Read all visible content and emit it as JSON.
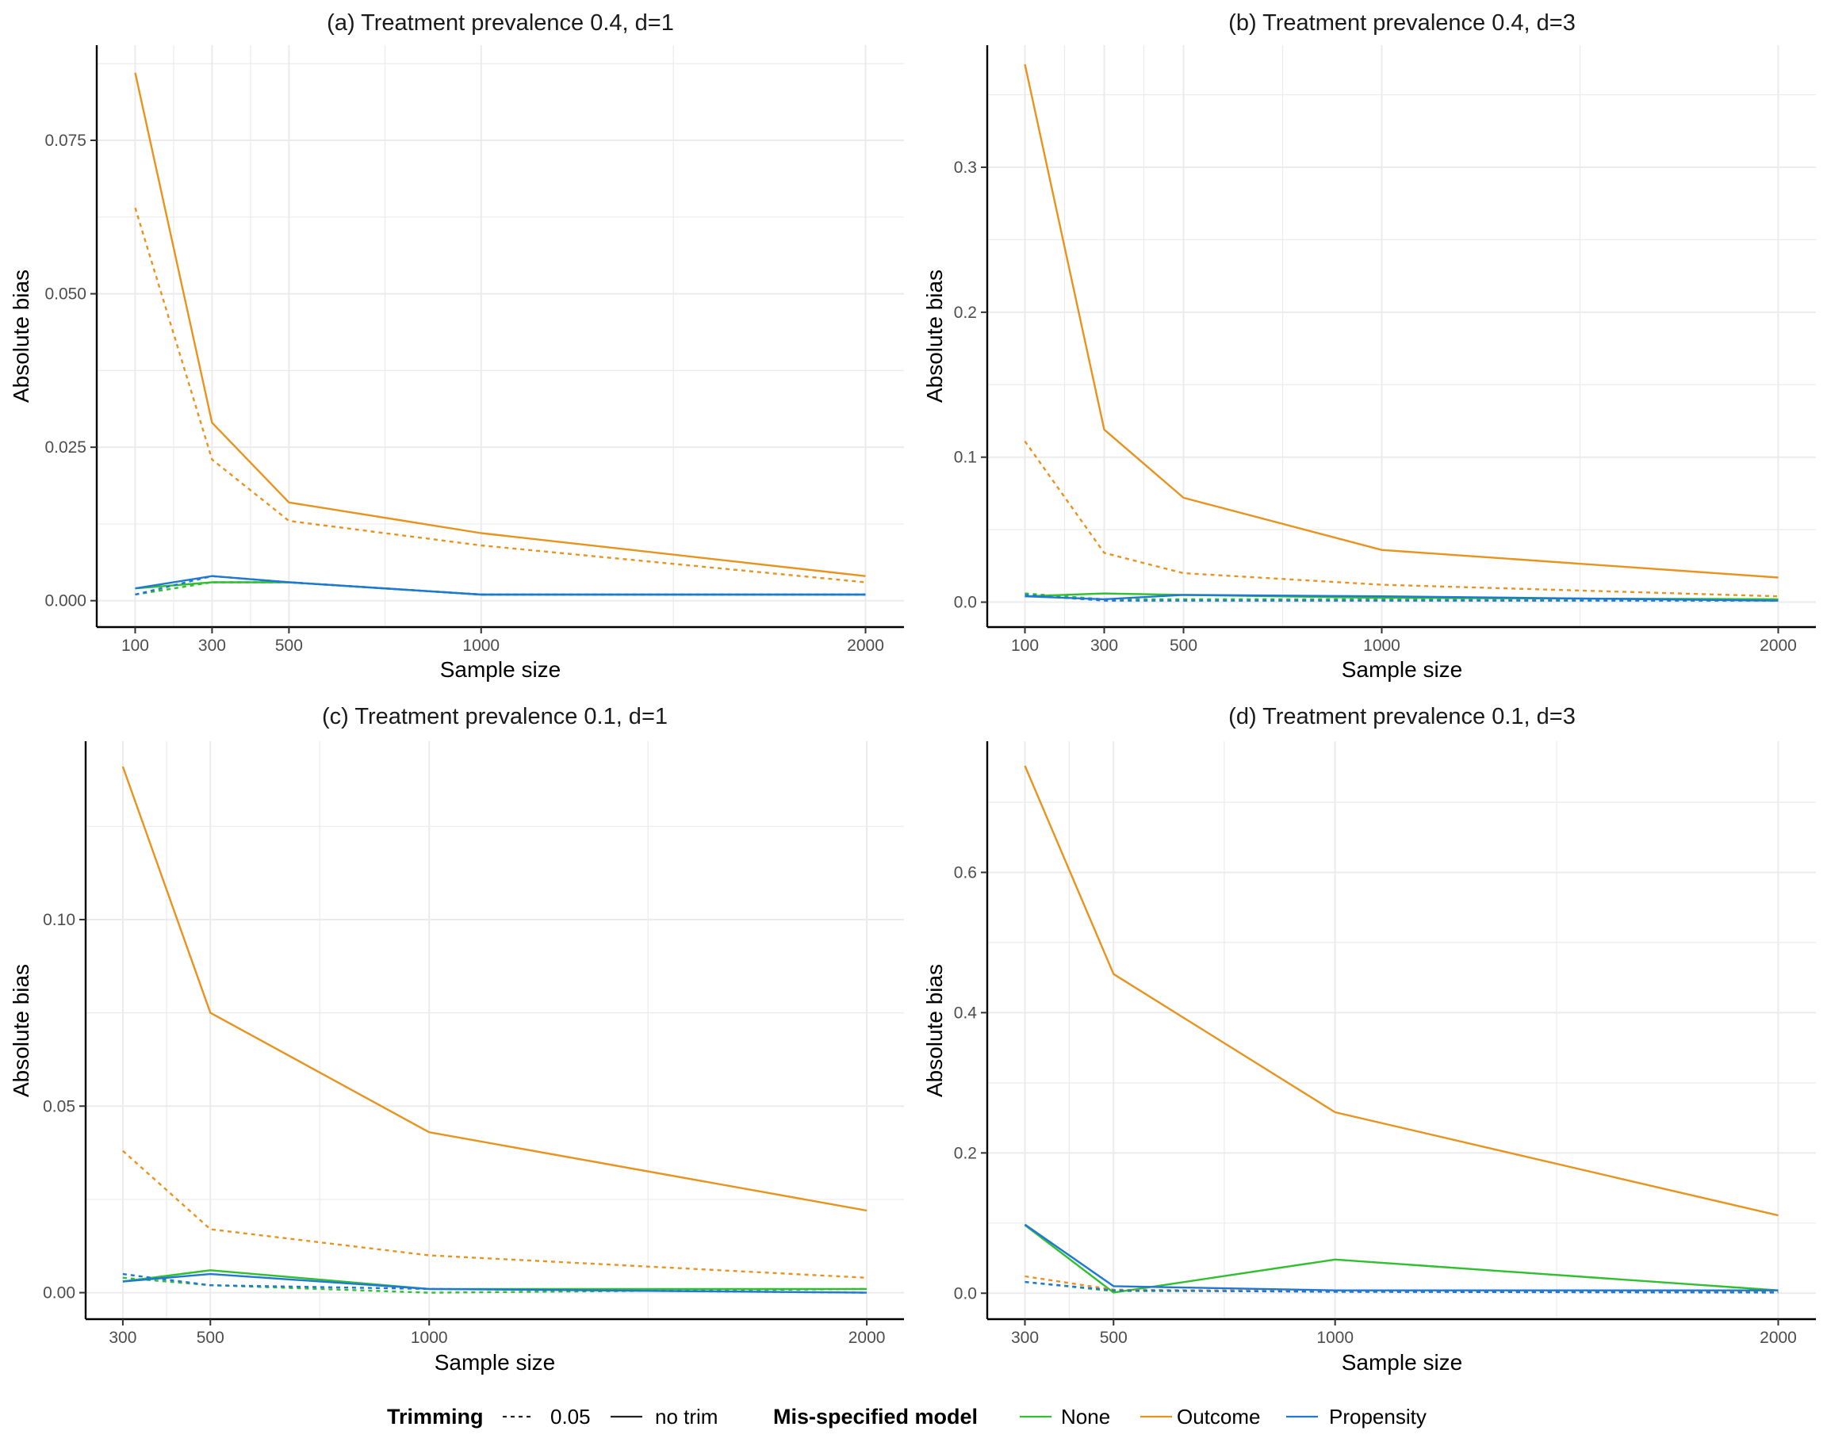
{
  "chart_data": [
    {
      "type": "line",
      "title": "(a) Treatment prevalence 0.4, d=1",
      "xlabel": "Sample size",
      "ylabel": "Absolute bias",
      "x": [
        100,
        300,
        500,
        1000,
        2000
      ],
      "xticks": [
        100,
        300,
        500,
        1000,
        2000
      ],
      "xtick_labels": [
        "100",
        "300",
        "500",
        "1000",
        "2000"
      ],
      "xlim": [
        0,
        2100
      ],
      "yticks": [
        0,
        0.025,
        0.05,
        0.075
      ],
      "ytick_labels": [
        "0.000",
        "0.025",
        "0.050",
        "0.075"
      ],
      "ylim": [
        -0.0043,
        0.0905
      ],
      "grid": true,
      "series": [
        {
          "name": "None",
          "trimming": "no trim",
          "values": [
            0.002,
            0.003,
            0.003,
            0.001,
            0.001
          ]
        },
        {
          "name": "None",
          "trimming": "0.05",
          "values": [
            0.001,
            0.003,
            0.003,
            0.001,
            0.001
          ]
        },
        {
          "name": "Outcome",
          "trimming": "no trim",
          "values": [
            0.086,
            0.029,
            0.016,
            0.011,
            0.004
          ]
        },
        {
          "name": "Outcome",
          "trimming": "0.05",
          "values": [
            0.064,
            0.023,
            0.013,
            0.009,
            0.003
          ]
        },
        {
          "name": "Propensity",
          "trimming": "no trim",
          "values": [
            0.002,
            0.004,
            0.003,
            0.001,
            0.001
          ]
        },
        {
          "name": "Propensity",
          "trimming": "0.05",
          "values": [
            0.001,
            0.004,
            0.003,
            0.001,
            0.001
          ]
        }
      ]
    },
    {
      "type": "line",
      "title": "(b) Treatment prevalence 0.4, d=3",
      "xlabel": "Sample size",
      "ylabel": "Absolute bias",
      "x": [
        100,
        300,
        500,
        1000,
        2000
      ],
      "xticks": [
        100,
        300,
        500,
        1000,
        2000
      ],
      "xtick_labels": [
        "100",
        "300",
        "500",
        "1000",
        "2000"
      ],
      "xlim": [
        5,
        2095
      ],
      "yticks": [
        0,
        0.1,
        0.2,
        0.3
      ],
      "ytick_labels": [
        "0.0",
        "0.1",
        "0.2",
        "0.3"
      ],
      "ylim": [
        -0.0172,
        0.3842
      ],
      "grid": true,
      "series": [
        {
          "name": "None",
          "trimming": "no trim",
          "values": [
            0.004,
            0.006,
            0.005,
            0.003,
            0.002
          ]
        },
        {
          "name": "None",
          "trimming": "0.05",
          "values": [
            0.006,
            0.002,
            0.002,
            0.002,
            0.002
          ]
        },
        {
          "name": "Outcome",
          "trimming": "no trim",
          "values": [
            0.371,
            0.119,
            0.072,
            0.036,
            0.017
          ]
        },
        {
          "name": "Outcome",
          "trimming": "0.05",
          "values": [
            0.111,
            0.034,
            0.02,
            0.012,
            0.004
          ]
        },
        {
          "name": "Propensity",
          "trimming": "no trim",
          "values": [
            0.004,
            0.002,
            0.005,
            0.004,
            0.001
          ]
        },
        {
          "name": "Propensity",
          "trimming": "0.05",
          "values": [
            0.005,
            0.001,
            0.001,
            0.001,
            0.001
          ]
        }
      ]
    },
    {
      "type": "line",
      "title": "(c) Treatment prevalence 0.1, d=1",
      "xlabel": "Sample size",
      "ylabel": "Absolute bias",
      "x": [
        300,
        500,
        1000,
        2000
      ],
      "xticks": [
        300,
        500,
        1000,
        2000
      ],
      "xtick_labels": [
        "300",
        "500",
        "1000",
        "2000"
      ],
      "xlim": [
        215,
        2085
      ],
      "yticks": [
        0,
        0.05,
        0.1
      ],
      "ytick_labels": [
        "0.00",
        "0.05",
        "0.10"
      ],
      "ylim": [
        -0.0071,
        0.1478
      ],
      "grid": true,
      "series": [
        {
          "name": "None",
          "trimming": "no trim",
          "values": [
            0.003,
            0.006,
            0.001,
            0.001
          ]
        },
        {
          "name": "None",
          "trimming": "0.05",
          "values": [
            0.004,
            0.002,
            0.0,
            0.001
          ]
        },
        {
          "name": "Outcome",
          "trimming": "no trim",
          "values": [
            0.141,
            0.075,
            0.043,
            0.022
          ]
        },
        {
          "name": "Outcome",
          "trimming": "0.05",
          "values": [
            0.038,
            0.017,
            0.01,
            0.004
          ]
        },
        {
          "name": "Propensity",
          "trimming": "no trim",
          "values": [
            0.003,
            0.005,
            0.001,
            0.0
          ]
        },
        {
          "name": "Propensity",
          "trimming": "0.05",
          "values": [
            0.005,
            0.002,
            0.001,
            0.0
          ]
        }
      ]
    },
    {
      "type": "line",
      "title": "(d) Treatment prevalence 0.1, d=3",
      "xlabel": "Sample size",
      "ylabel": "Absolute bias",
      "x": [
        300,
        500,
        1000,
        2000
      ],
      "xticks": [
        300,
        500,
        1000,
        2000
      ],
      "xtick_labels": [
        "300",
        "500",
        "1000",
        "2000"
      ],
      "xlim": [
        215,
        2085
      ],
      "yticks": [
        0,
        0.2,
        0.4,
        0.6
      ],
      "ytick_labels": [
        "0.0",
        "0.2",
        "0.4",
        "0.6"
      ],
      "ylim": [
        -0.037,
        0.787
      ],
      "grid": true,
      "series": [
        {
          "name": "None",
          "trimming": "no trim",
          "values": [
            0.097,
            0.001,
            0.048,
            0.004
          ]
        },
        {
          "name": "None",
          "trimming": "0.05",
          "values": [
            0.016,
            0.003,
            0.003,
            0.003
          ]
        },
        {
          "name": "Outcome",
          "trimming": "no trim",
          "values": [
            0.752,
            0.455,
            0.258,
            0.111
          ]
        },
        {
          "name": "Outcome",
          "trimming": "0.05",
          "values": [
            0.024,
            0.005,
            0.003,
            0.002
          ]
        },
        {
          "name": "Propensity",
          "trimming": "no trim",
          "values": [
            0.098,
            0.01,
            0.004,
            0.004
          ]
        },
        {
          "name": "Propensity",
          "trimming": "0.05",
          "values": [
            0.016,
            0.004,
            0.002,
            0.001
          ]
        }
      ]
    }
  ],
  "legend": {
    "position": "bottom",
    "trimming_title": "Trimming",
    "trimming_items": [
      {
        "label": "0.05",
        "dash": "dashed"
      },
      {
        "label": "no trim",
        "dash": "solid"
      }
    ],
    "model_title": "Mis-specified model",
    "model_items": [
      {
        "label": "None",
        "color": "#2fbf2f"
      },
      {
        "label": "Outcome",
        "color": "#e8931e"
      },
      {
        "label": "Propensity",
        "color": "#1f78d4"
      }
    ]
  },
  "colors": {
    "None": "#2fbf2f",
    "Outcome": "#e8931e",
    "Propensity": "#1f78d4",
    "grid": "#ebebeb",
    "axis": "#000000"
  }
}
